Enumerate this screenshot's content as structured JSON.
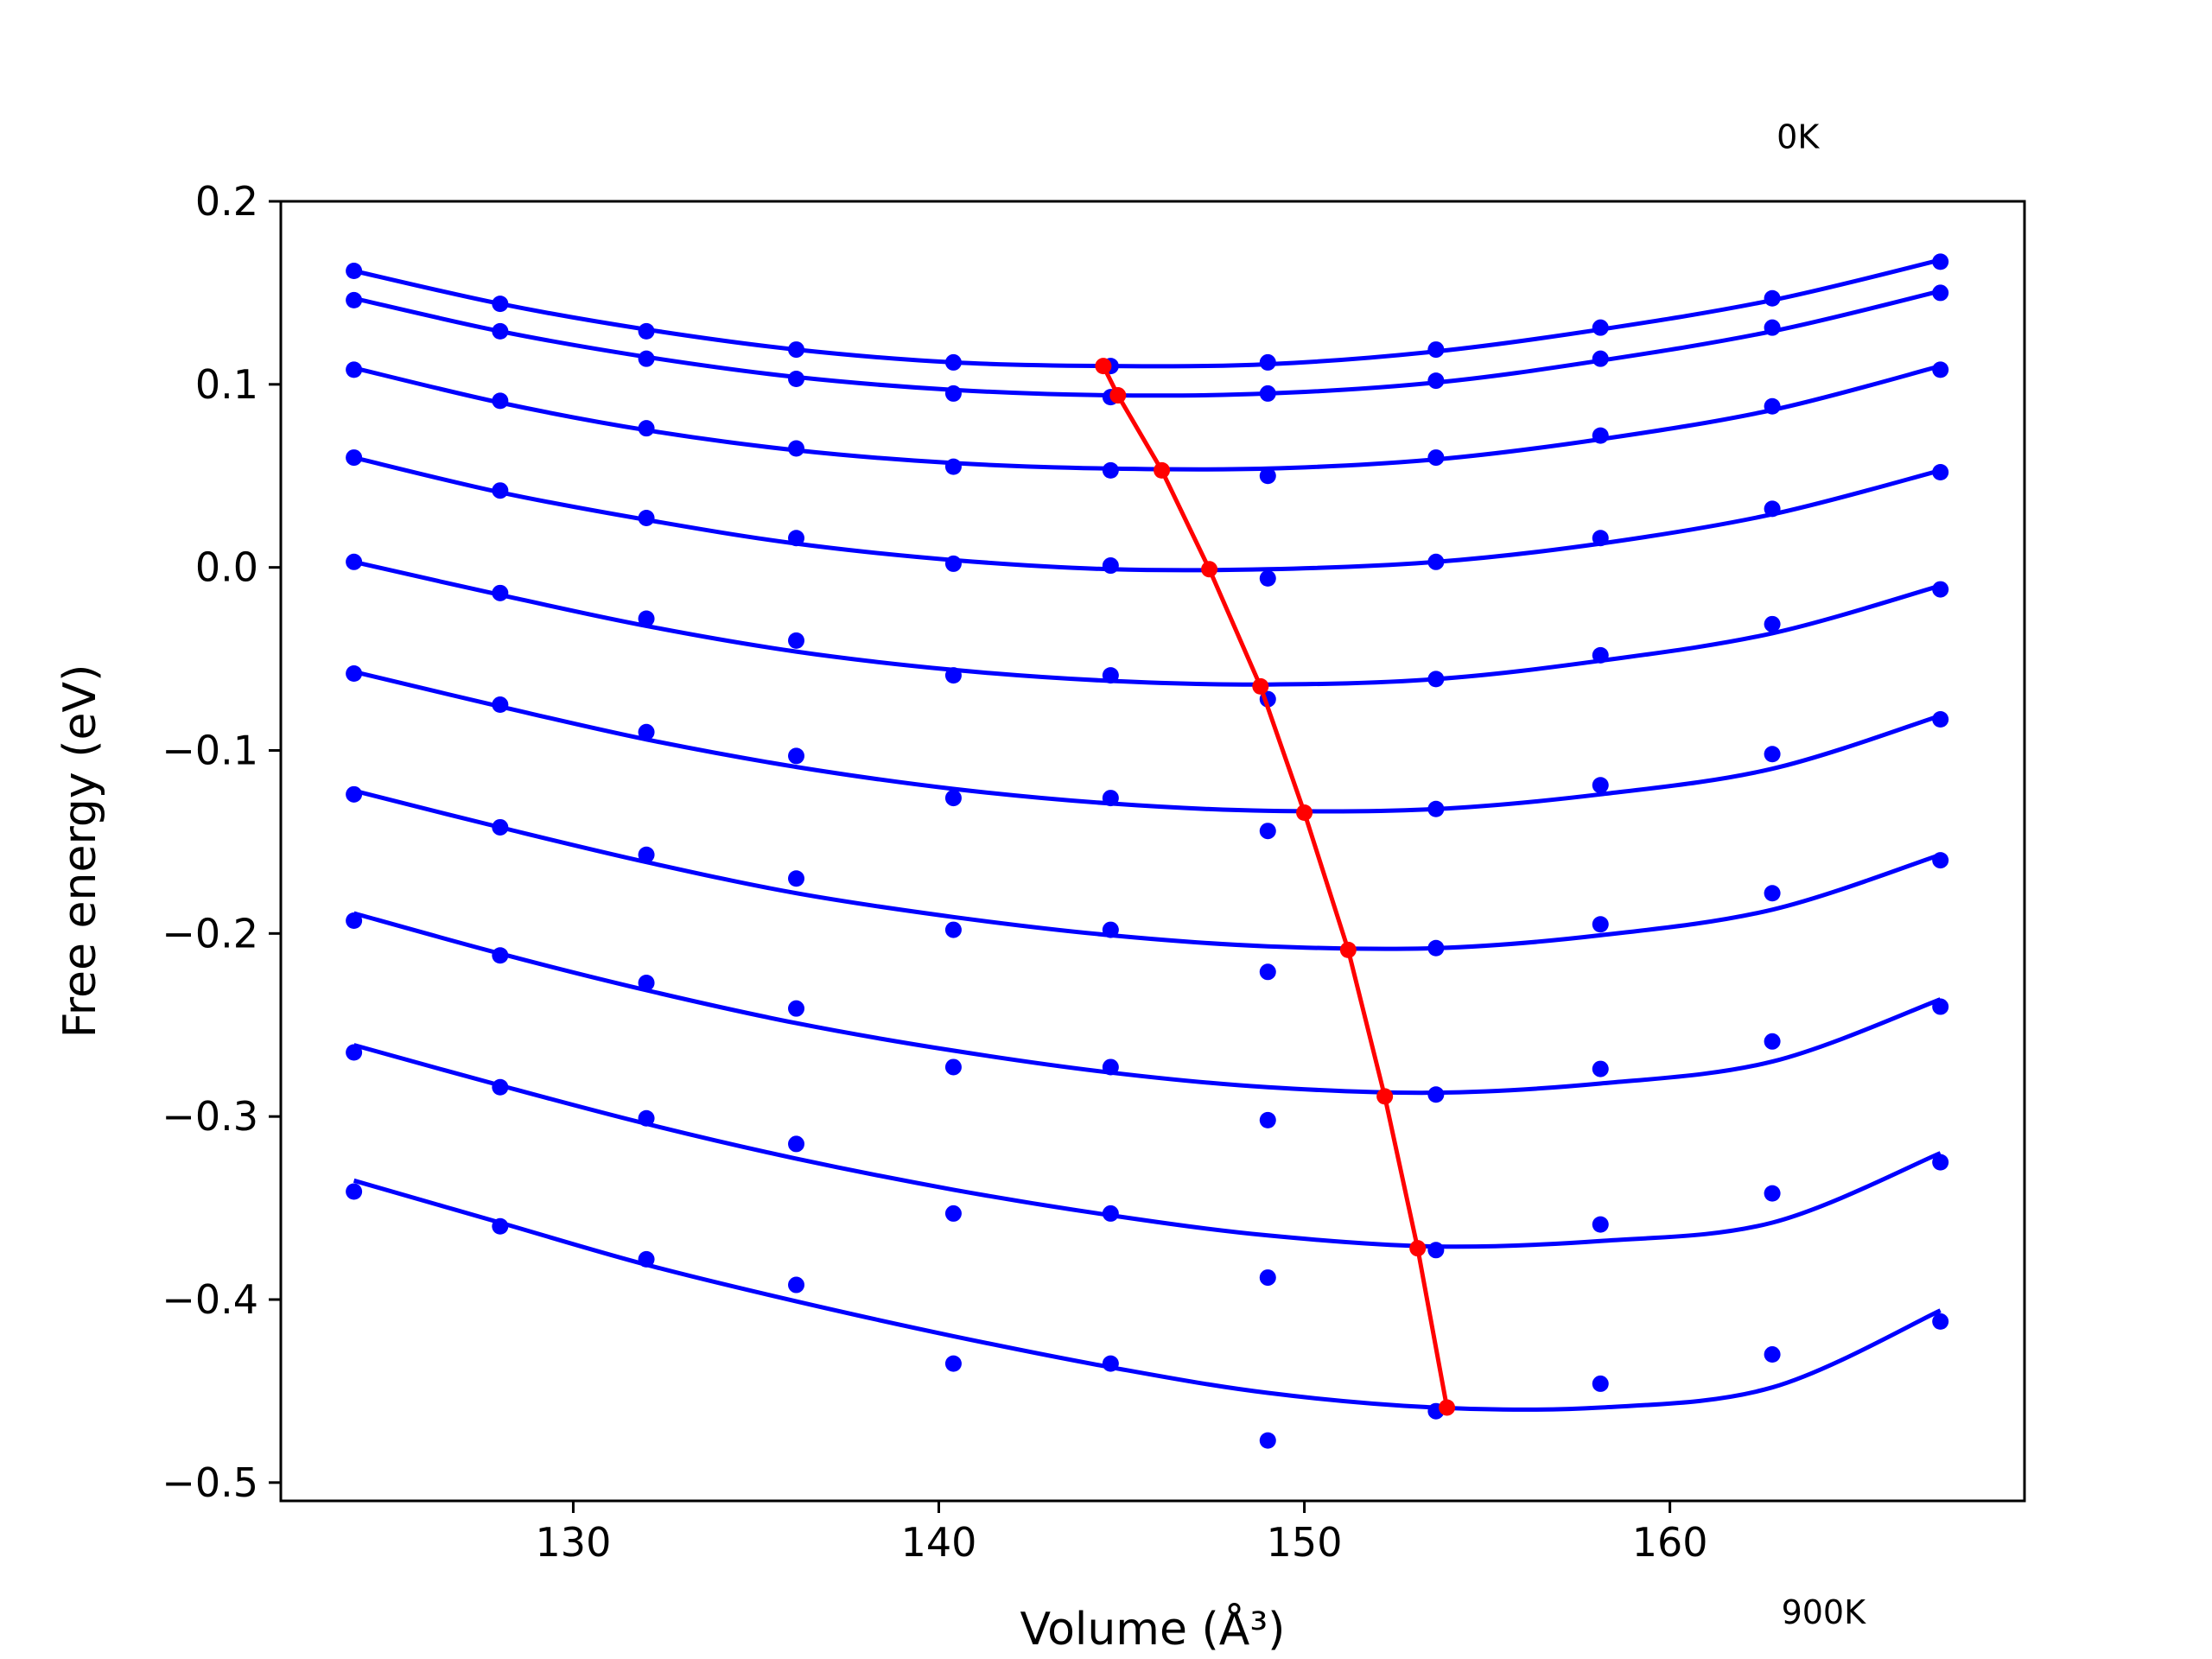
{
  "chart_data": {
    "type": "scatter",
    "title": "",
    "xlabel": "Volume (Å³)",
    "ylabel": "Free energy (eV)",
    "xlim": [
      122,
      169.7
    ],
    "ylim": [
      -0.51,
      0.2
    ],
    "xticks": [
      {
        "value": 130,
        "label": "130"
      },
      {
        "value": 140,
        "label": "140"
      },
      {
        "value": 150,
        "label": "150"
      },
      {
        "value": 160,
        "label": "160"
      }
    ],
    "yticks": [
      {
        "value": 0.2,
        "label": "0.2"
      },
      {
        "value": 0.1,
        "label": "0.1"
      },
      {
        "value": 0.0,
        "label": "0.0"
      },
      {
        "value": -0.1,
        "label": "−0.1"
      },
      {
        "value": -0.2,
        "label": "−0.2"
      },
      {
        "value": -0.3,
        "label": "−0.3"
      },
      {
        "value": -0.4,
        "label": "−0.4"
      },
      {
        "value": -0.5,
        "label": "−0.5"
      }
    ],
    "annotations": [
      {
        "text": "0K",
        "x": 163.5,
        "y": 0.229
      },
      {
        "text": "900K",
        "x": 164.2,
        "y": -0.577
      }
    ],
    "grid": false,
    "colors": {
      "data": "#0000ff",
      "fit": "#0000ff",
      "minimum": "#ff0000"
    },
    "volumes": [
      124.0,
      128.0,
      132.0,
      136.1,
      140.4,
      144.7,
      149.0,
      153.6,
      158.1,
      162.8,
      167.4
    ],
    "series": [
      {
        "energies": [
          0.162,
          0.144,
          0.129,
          0.119,
          0.112,
          0.11,
          0.112,
          0.119,
          0.131,
          0.147,
          0.167
        ],
        "fit": [
          0.162,
          0.144,
          0.13,
          0.119,
          0.112,
          0.11,
          0.111,
          0.118,
          0.13,
          0.146,
          0.168
        ]
      },
      {
        "energies": [
          0.146,
          0.129,
          0.114,
          0.103,
          0.095,
          0.093,
          0.095,
          0.102,
          0.114,
          0.131,
          0.15
        ],
        "fit": [
          0.147,
          0.129,
          0.115,
          0.104,
          0.097,
          0.094,
          0.095,
          0.101,
          0.113,
          0.129,
          0.151
        ]
      },
      {
        "energies": [
          0.108,
          0.091,
          0.076,
          0.065,
          0.055,
          0.053,
          0.05,
          0.06,
          0.072,
          0.088,
          0.108
        ],
        "fit": [
          0.109,
          0.09,
          0.075,
          0.064,
          0.057,
          0.054,
          0.054,
          0.059,
          0.07,
          0.086,
          0.11
        ]
      },
      {
        "energies": [
          0.06,
          0.042,
          0.027,
          0.016,
          0.002,
          0.001,
          -0.006,
          0.003,
          0.016,
          0.032,
          0.052
        ],
        "fit": [
          0.06,
          0.041,
          0.026,
          0.013,
          0.004,
          -0.001,
          -0.001,
          0.003,
          0.013,
          0.029,
          0.053
        ]
      },
      {
        "energies": [
          0.003,
          -0.014,
          -0.028,
          -0.04,
          -0.059,
          -0.059,
          -0.072,
          -0.061,
          -0.048,
          -0.031,
          -0.012
        ],
        "fit": [
          0.003,
          -0.015,
          -0.032,
          -0.046,
          -0.056,
          -0.062,
          -0.064,
          -0.061,
          -0.051,
          -0.036,
          -0.01
        ]
      },
      {
        "energies": [
          -0.058,
          -0.075,
          -0.09,
          -0.103,
          -0.126,
          -0.126,
          -0.144,
          -0.132,
          -0.119,
          -0.102,
          -0.083
        ],
        "fit": [
          -0.057,
          -0.076,
          -0.094,
          -0.109,
          -0.121,
          -0.129,
          -0.133,
          -0.132,
          -0.124,
          -0.11,
          -0.081
        ]
      },
      {
        "energies": [
          -0.124,
          -0.142,
          -0.157,
          -0.17,
          -0.198,
          -0.198,
          -0.221,
          -0.208,
          -0.195,
          -0.178,
          -0.16
        ],
        "fit": [
          -0.122,
          -0.142,
          -0.161,
          -0.178,
          -0.191,
          -0.201,
          -0.207,
          -0.208,
          -0.201,
          -0.187,
          -0.157
        ]
      },
      {
        "energies": [
          -0.193,
          -0.212,
          -0.227,
          -0.241,
          -0.273,
          -0.273,
          -0.302,
          -0.288,
          -0.274,
          -0.259,
          -0.24
        ],
        "fit": [
          -0.189,
          -0.211,
          -0.231,
          -0.249,
          -0.264,
          -0.276,
          -0.284,
          -0.287,
          -0.282,
          -0.27,
          -0.236
        ]
      },
      {
        "energies": [
          -0.265,
          -0.284,
          -0.301,
          -0.315,
          -0.353,
          -0.353,
          -0.388,
          -0.373,
          -0.359,
          -0.342,
          -0.325
        ],
        "fit": [
          -0.261,
          -0.283,
          -0.304,
          -0.323,
          -0.34,
          -0.354,
          -0.365,
          -0.371,
          -0.368,
          -0.358,
          -0.32
        ]
      },
      {
        "energies": [
          -0.341,
          -0.36,
          -0.378,
          -0.392,
          -0.435,
          -0.435,
          -0.477,
          -0.461,
          -0.446,
          -0.43,
          -0.412
        ],
        "fit": [
          -0.335,
          -0.358,
          -0.381,
          -0.401,
          -0.42,
          -0.437,
          -0.451,
          -0.459,
          -0.459,
          -0.448,
          -0.406
        ]
      }
    ],
    "minima": {
      "x": [
        144.5,
        144.9,
        146.1,
        147.4,
        148.8,
        150.0,
        151.2,
        152.2,
        153.1,
        153.9
      ],
      "y": [
        0.11,
        0.094,
        0.053,
        -0.001,
        -0.065,
        -0.134,
        -0.209,
        -0.289,
        -0.372,
        -0.459
      ]
    }
  }
}
